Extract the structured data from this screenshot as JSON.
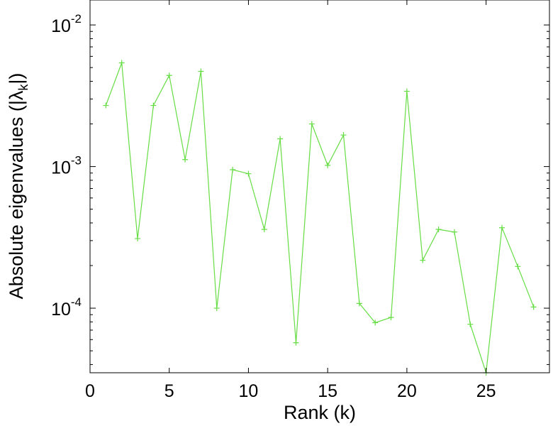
{
  "chart_data": {
    "type": "line",
    "title": "",
    "xlabel": "Rank (k)",
    "ylabel": {
      "prefix": "Absolute eigenvalues (|",
      "symbol": "λ",
      "subscript": "k",
      "suffix": "|)"
    },
    "xlim": [
      0,
      29
    ],
    "ylim": [
      3.5e-05,
      0.015
    ],
    "yscale": "log",
    "grid": false,
    "x_ticks": [
      0,
      5,
      10,
      15,
      20,
      25
    ],
    "y_ticks": [
      {
        "value": 0.0001,
        "base": "10",
        "exponent": "-4"
      },
      {
        "value": 0.001,
        "base": "10",
        "exponent": "-3"
      },
      {
        "value": 0.01,
        "base": "10",
        "exponent": "-2"
      }
    ],
    "series": [
      {
        "color": "#66dd44",
        "marker": "+",
        "x": [
          1,
          2,
          3,
          4,
          5,
          6,
          7,
          8,
          9,
          10,
          11,
          12,
          13,
          14,
          15,
          16,
          17,
          18,
          19,
          20,
          21,
          22,
          23,
          24,
          25,
          26,
          27,
          28
        ],
        "y": [
          0.0027,
          0.0054,
          0.00031,
          0.0027,
          0.0044,
          0.00112,
          0.0047,
          0.0001,
          0.00095,
          0.00089,
          0.00036,
          0.00157,
          5.7e-05,
          0.002,
          0.00102,
          0.00167,
          0.000108,
          7.9e-05,
          8.6e-05,
          0.0034,
          0.000218,
          0.00036,
          0.000345,
          7.7e-05,
          3.5e-05,
          0.00037,
          0.000197,
          0.000102
        ]
      }
    ]
  }
}
